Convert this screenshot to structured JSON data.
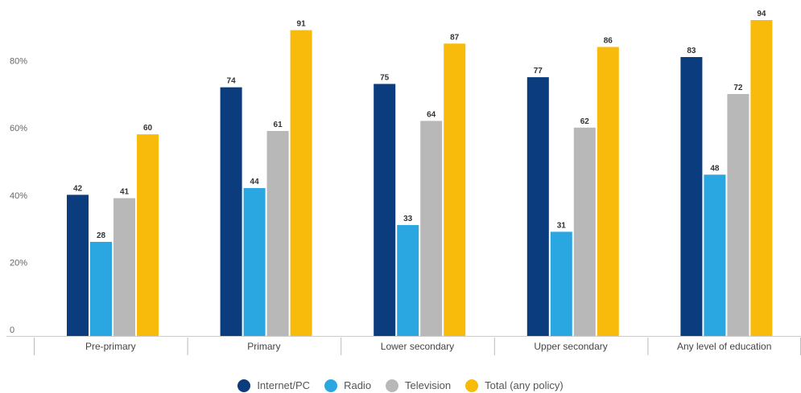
{
  "chart_data": {
    "type": "bar",
    "title": "",
    "xlabel": "",
    "ylabel": "",
    "ylim": [
      0,
      94
    ],
    "yticks": [
      0,
      20,
      40,
      60,
      80
    ],
    "ytick_labels": [
      "0",
      "20%",
      "40%",
      "60%",
      "80%"
    ],
    "categories": [
      "Pre-primary",
      "Primary",
      "Lower secondary",
      "Upper secondary",
      "Any level of education"
    ],
    "series": [
      {
        "name": "Internet/PC",
        "color": "#0b3c7d",
        "values": [
          42,
          74,
          75,
          77,
          83
        ]
      },
      {
        "name": "Radio",
        "color": "#2aa7e0",
        "values": [
          28,
          44,
          33,
          31,
          48
        ]
      },
      {
        "name": "Television",
        "color": "#b8b8b8",
        "values": [
          41,
          61,
          64,
          62,
          72
        ]
      },
      {
        "name": "Total (any policy)",
        "color": "#f8bb0b",
        "values": [
          60,
          91,
          87,
          86,
          94
        ]
      }
    ],
    "grid": false,
    "legend_position": "bottom"
  }
}
